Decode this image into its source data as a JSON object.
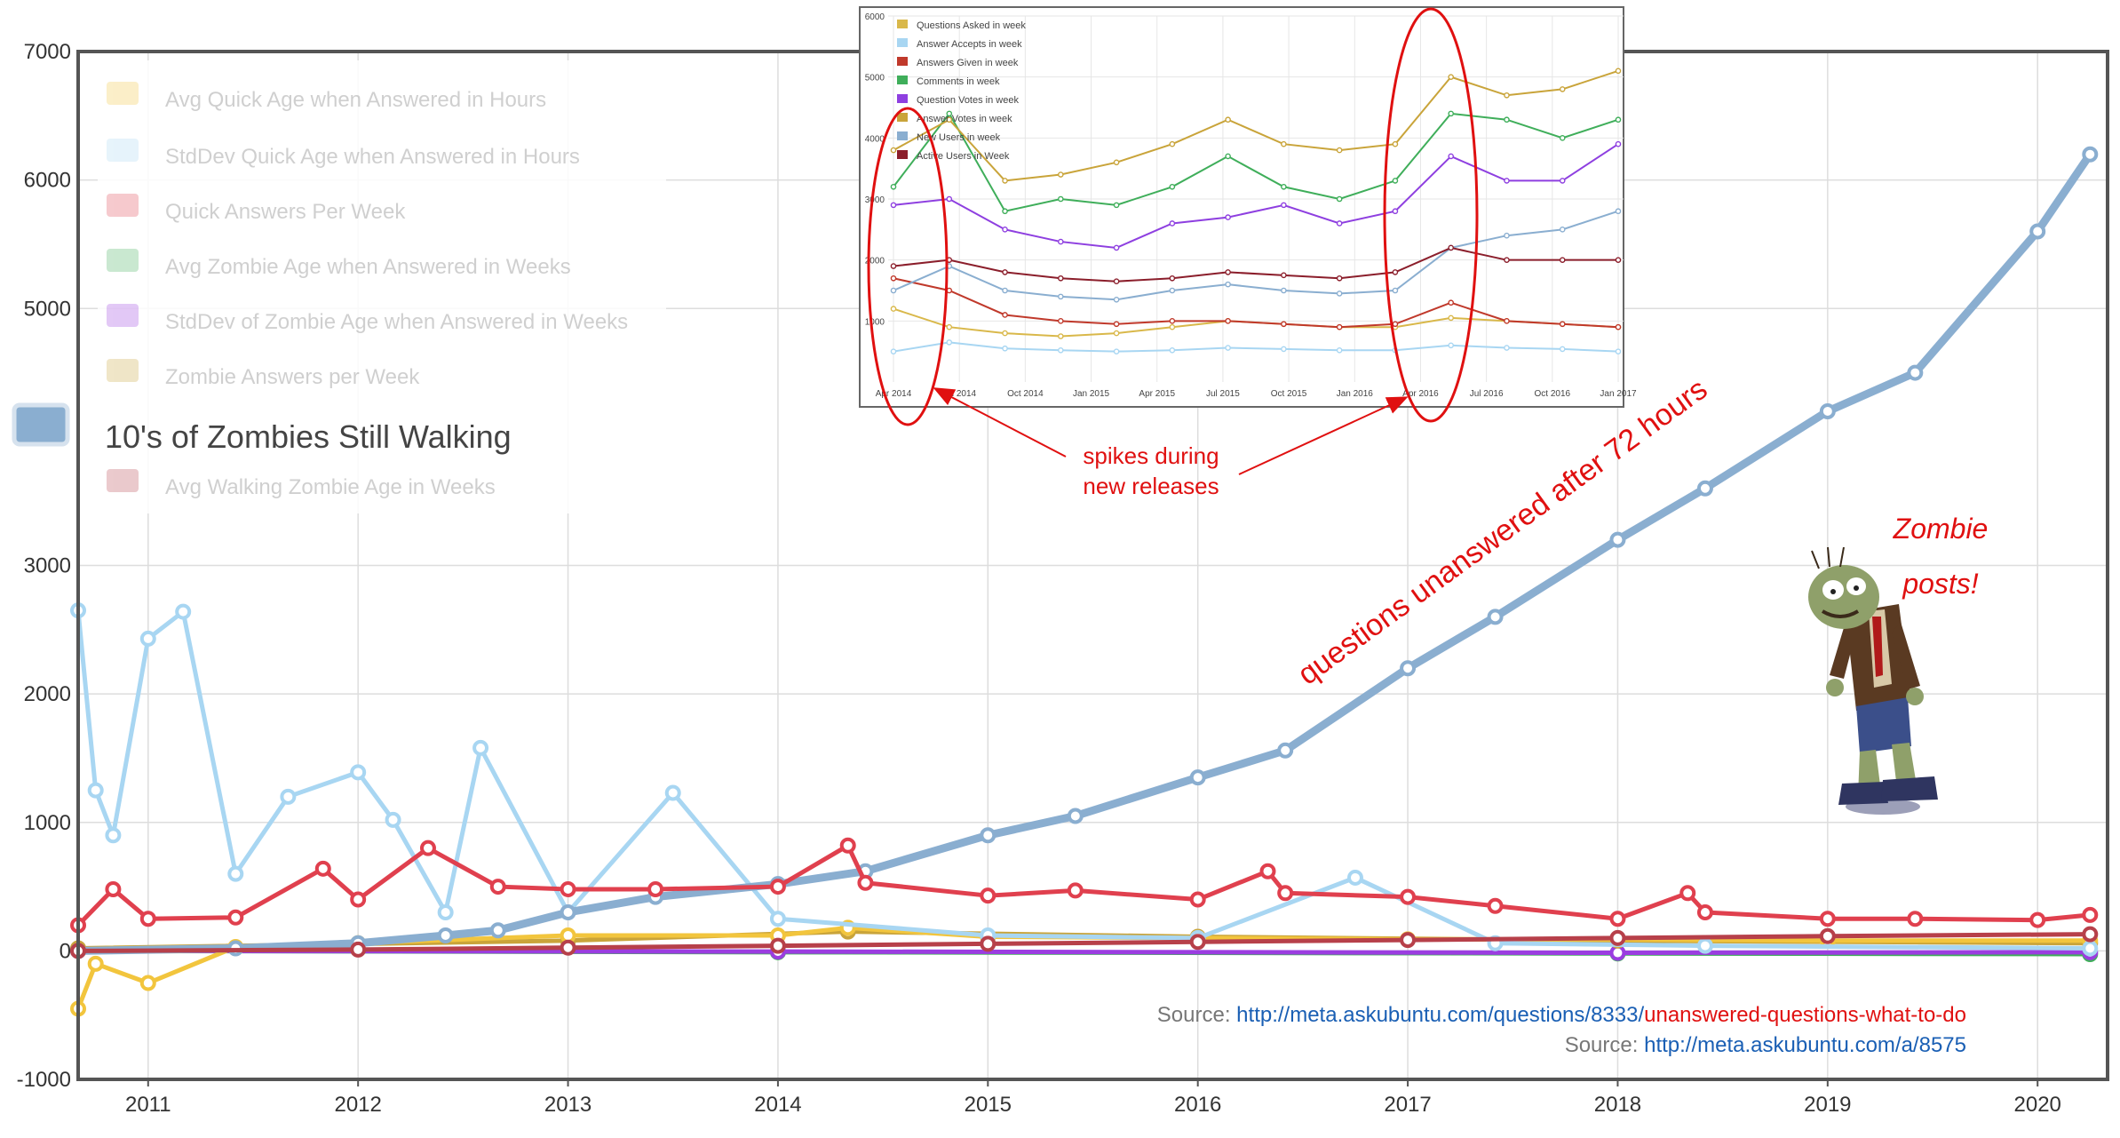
{
  "chart_data": [
    {
      "type": "line",
      "x_ticks": [
        "2011",
        "2012",
        "2013",
        "2014",
        "2015",
        "2016",
        "2017",
        "2018",
        "2019",
        "2020"
      ],
      "y_ticks": [
        7000,
        6000,
        5000,
        3000,
        2000,
        1000,
        0,
        -1000
      ],
      "xlim": [
        "2010-09",
        "2020-05"
      ],
      "ylim": [
        -1000,
        7000
      ],
      "grid": true,
      "legend_position": "top-left",
      "legend": [
        {
          "name": "Avg Quick Age when Answered in Hours",
          "color": "#f2c53d",
          "faded": true
        },
        {
          "name": "StdDev Quick Age when Answered in Hours",
          "color": "#a8d6f2",
          "faded": true
        },
        {
          "name": "Quick Answers Per Week",
          "color": "#e0404e",
          "faded": true
        },
        {
          "name": "Avg Zombie Age when Answered in Weeks",
          "color": "#3fae5a",
          "faded": true
        },
        {
          "name": "StdDev of Zombie Age when Answered in Weeks",
          "color": "#9b3de0",
          "faded": true
        },
        {
          "name": "Zombie Answers per Week",
          "color": "#c9a43a",
          "faded": true
        },
        {
          "name": "10's of Zombies Still Walking",
          "color": "#8aaed0",
          "faded": false
        },
        {
          "name": "Avg Walking Zombie Age in Weeks",
          "color": "#b7404a",
          "faded": true
        }
      ],
      "series": [
        {
          "name": "10's of Zombies Still Walking",
          "color": "#8aaed0",
          "points": [
            [
              "2010-09",
              0
            ],
            [
              "2011-06",
              20
            ],
            [
              "2012-01",
              60
            ],
            [
              "2012-06",
              120
            ],
            [
              "2012-09",
              160
            ],
            [
              "2013-01",
              300
            ],
            [
              "2013-06",
              420
            ],
            [
              "2014-01",
              520
            ],
            [
              "2014-06",
              620
            ],
            [
              "2015-01",
              900
            ],
            [
              "2015-06",
              1050
            ],
            [
              "2016-01",
              1350
            ],
            [
              "2016-06",
              1560
            ],
            [
              "2017-01",
              2200
            ],
            [
              "2017-06",
              2600
            ],
            [
              "2018-01",
              3200
            ],
            [
              "2018-06",
              3600
            ],
            [
              "2019-01",
              4200
            ],
            [
              "2019-06",
              4500
            ],
            [
              "2020-01",
              5600
            ],
            [
              "2020-04",
              6200
            ]
          ]
        },
        {
          "name": "StdDev Quick Age when Answered in Hours",
          "color": "#a8d6f2",
          "points": [
            [
              "2010-09",
              2650
            ],
            [
              "2010-10",
              1250
            ],
            [
              "2010-11",
              900
            ],
            [
              "2011-01",
              2430
            ],
            [
              "2011-03",
              2640
            ],
            [
              "2011-06",
              600
            ],
            [
              "2011-09",
              1200
            ],
            [
              "2012-01",
              1390
            ],
            [
              "2012-03",
              1020
            ],
            [
              "2012-06",
              300
            ],
            [
              "2012-08",
              1580
            ],
            [
              "2013-01",
              300
            ],
            [
              "2013-07",
              1230
            ],
            [
              "2014-01",
              250
            ],
            [
              "2015-01",
              120
            ],
            [
              "2016-01",
              100
            ],
            [
              "2016-10",
              570
            ],
            [
              "2017-06",
              60
            ],
            [
              "2018-06",
              40
            ],
            [
              "2020-04",
              20
            ]
          ]
        },
        {
          "name": "Quick Answers Per Week",
          "color": "#e0404e",
          "points": [
            [
              "2010-09",
              200
            ],
            [
              "2010-11",
              480
            ],
            [
              "2011-01",
              250
            ],
            [
              "2011-06",
              260
            ],
            [
              "2011-11",
              640
            ],
            [
              "2012-01",
              400
            ],
            [
              "2012-05",
              800
            ],
            [
              "2012-09",
              500
            ],
            [
              "2013-01",
              480
            ],
            [
              "2013-06",
              480
            ],
            [
              "2014-01",
              500
            ],
            [
              "2014-05",
              820
            ],
            [
              "2014-06",
              530
            ],
            [
              "2015-01",
              430
            ],
            [
              "2015-06",
              470
            ],
            [
              "2016-01",
              400
            ],
            [
              "2016-05",
              620
            ],
            [
              "2016-06",
              450
            ],
            [
              "2017-01",
              420
            ],
            [
              "2017-06",
              350
            ],
            [
              "2018-01",
              250
            ],
            [
              "2018-05",
              450
            ],
            [
              "2018-06",
              300
            ],
            [
              "2019-01",
              250
            ],
            [
              "2019-06",
              250
            ],
            [
              "2020-01",
              240
            ],
            [
              "2020-04",
              280
            ]
          ]
        },
        {
          "name": "Avg Quick Age when Answered in Hours",
          "color": "#f2c53d",
          "points": [
            [
              "2010-09",
              -450
            ],
            [
              "2010-10",
              -100
            ],
            [
              "2011-01",
              -250
            ],
            [
              "2011-06",
              30
            ],
            [
              "2012-01",
              60
            ],
            [
              "2013-01",
              120
            ],
            [
              "2014-01",
              120
            ],
            [
              "2014-05",
              180
            ],
            [
              "2015-01",
              110
            ],
            [
              "2016-01",
              100
            ],
            [
              "2017-01",
              90
            ],
            [
              "2018-01",
              90
            ],
            [
              "2019-01",
              80
            ],
            [
              "2020-04",
              80
            ]
          ]
        },
        {
          "name": "Avg Walking Zombie Age in Weeks",
          "color": "#b7404a",
          "points": [
            [
              "2010-09",
              0
            ],
            [
              "2012-01",
              10
            ],
            [
              "2013-01",
              25
            ],
            [
              "2014-01",
              40
            ],
            [
              "2015-01",
              55
            ],
            [
              "2016-01",
              70
            ],
            [
              "2017-01",
              85
            ],
            [
              "2018-01",
              100
            ],
            [
              "2019-01",
              115
            ],
            [
              "2020-04",
              130
            ]
          ]
        },
        {
          "name": "Avg Zombie Age when Answered in Weeks",
          "color": "#3fae5a",
          "points": [
            [
              "2010-09",
              0
            ],
            [
              "2014-01",
              -10
            ],
            [
              "2018-01",
              -20
            ],
            [
              "2020-04",
              -25
            ]
          ]
        },
        {
          "name": "StdDev of Zombie Age when Answered in Weeks",
          "color": "#9b3de0",
          "points": [
            [
              "2010-09",
              0
            ],
            [
              "2014-01",
              -5
            ],
            [
              "2018-01",
              -15
            ],
            [
              "2020-04",
              -10
            ]
          ]
        },
        {
          "name": "Zombie Answers per Week",
          "color": "#c9a43a",
          "points": [
            [
              "2010-09",
              20
            ],
            [
              "2013-01",
              80
            ],
            [
              "2014-05",
              150
            ],
            [
              "2016-01",
              110
            ],
            [
              "2018-01",
              80
            ],
            [
              "2020-04",
              60
            ]
          ]
        }
      ]
    },
    {
      "type": "line",
      "x_ticks": [
        "Apr 2014",
        "Jul 2014",
        "Oct 2014",
        "Jan 2015",
        "Apr 2015",
        "Jul 2015",
        "Oct 2015",
        "Jan 2016",
        "Apr 2016",
        "Jul 2016",
        "Oct 2016",
        "Jan 2017"
      ],
      "y_ticks": [
        6000,
        5000,
        4000,
        3000,
        2000,
        1000
      ],
      "ylim": [
        0,
        6000
      ],
      "grid": true,
      "legend_position": "top-left",
      "series": [
        {
          "name": "Questions Asked in week",
          "color": "#d9b84a",
          "values": [
            1200,
            900,
            800,
            750,
            800,
            900,
            1000,
            950,
            900,
            900,
            1050,
            1000,
            950,
            900
          ]
        },
        {
          "name": "Answer Accepts in week",
          "color": "#a8d6f2",
          "values": [
            500,
            650,
            550,
            520,
            500,
            520,
            560,
            540,
            520,
            520,
            600,
            560,
            540,
            500
          ]
        },
        {
          "name": "Answers Given in week",
          "color": "#c0392b",
          "values": [
            1700,
            1500,
            1100,
            1000,
            950,
            1000,
            1000,
            950,
            900,
            950,
            1300,
            1000,
            950,
            900
          ]
        },
        {
          "name": "Comments in week",
          "color": "#3fae5a",
          "values": [
            3200,
            4400,
            2800,
            3000,
            2900,
            3200,
            3700,
            3200,
            3000,
            3300,
            4400,
            4300,
            4000,
            4300
          ]
        },
        {
          "name": "Question Votes in week",
          "color": "#8e3fe0",
          "values": [
            2900,
            3000,
            2500,
            2300,
            2200,
            2600,
            2700,
            2900,
            2600,
            2800,
            3700,
            3300,
            3300,
            3900
          ]
        },
        {
          "name": "Answer Votes in week",
          "color": "#c9a43a",
          "values": [
            3800,
            4300,
            3300,
            3400,
            3600,
            3900,
            4300,
            3900,
            3800,
            3900,
            5000,
            4700,
            4800,
            5100
          ]
        },
        {
          "name": "New Users in week",
          "color": "#8aaed0",
          "values": [
            1500,
            1900,
            1500,
            1400,
            1350,
            1500,
            1600,
            1500,
            1450,
            1500,
            2200,
            2400,
            2500,
            2800
          ]
        },
        {
          "name": "Active Users in Week",
          "color": "#8b1e2b",
          "values": [
            1900,
            2000,
            1800,
            1700,
            1650,
            1700,
            1800,
            1750,
            1700,
            1800,
            2200,
            2000,
            2000,
            2000
          ]
        }
      ]
    }
  ],
  "legend_labels": {
    "item0": "Avg Quick Age when Answered in Hours",
    "item1": "StdDev Quick Age when Answered in Hours",
    "item2": "Quick Answers Per Week",
    "item3": "Avg Zombie Age when Answered in Weeks",
    "item4": "StdDev of Zombie Age when Answered in Weeks",
    "item5": "Zombie Answers per Week",
    "item6": "10's of Zombies Still Walking",
    "item7": "Avg Walking Zombie Age in Weeks"
  },
  "inset_legend_labels": {
    "item0": "Questions Asked in week",
    "item1": "Answer Accepts in week",
    "item2": "Answers Given in week",
    "item3": "Comments in week",
    "item4": "Question Votes in week",
    "item5": "Answer Votes in week",
    "item6": "New Users in week",
    "item7": "Active Users in Week"
  },
  "annotations": {
    "spikes_line1": "spikes during",
    "spikes_line2": "new releases",
    "trend": "questions unanswered after 72 hours",
    "zombie_line1": "Zombie",
    "zombie_line2": "posts!"
  },
  "sources": {
    "prefix": "Source:",
    "line1_link_blue": "http://meta.askubuntu.com/questions/8333/",
    "line1_link_red": "unanswered-questions-what-to-do",
    "line2_link": "http://meta.askubuntu.com/a/8575"
  },
  "colors": {
    "annotation_red": "#e01010",
    "link_blue": "#1a5fb4",
    "source_gray": "#777777",
    "zombie_skin": "#8fa06a",
    "zombie_coat": "#5a3a22"
  }
}
